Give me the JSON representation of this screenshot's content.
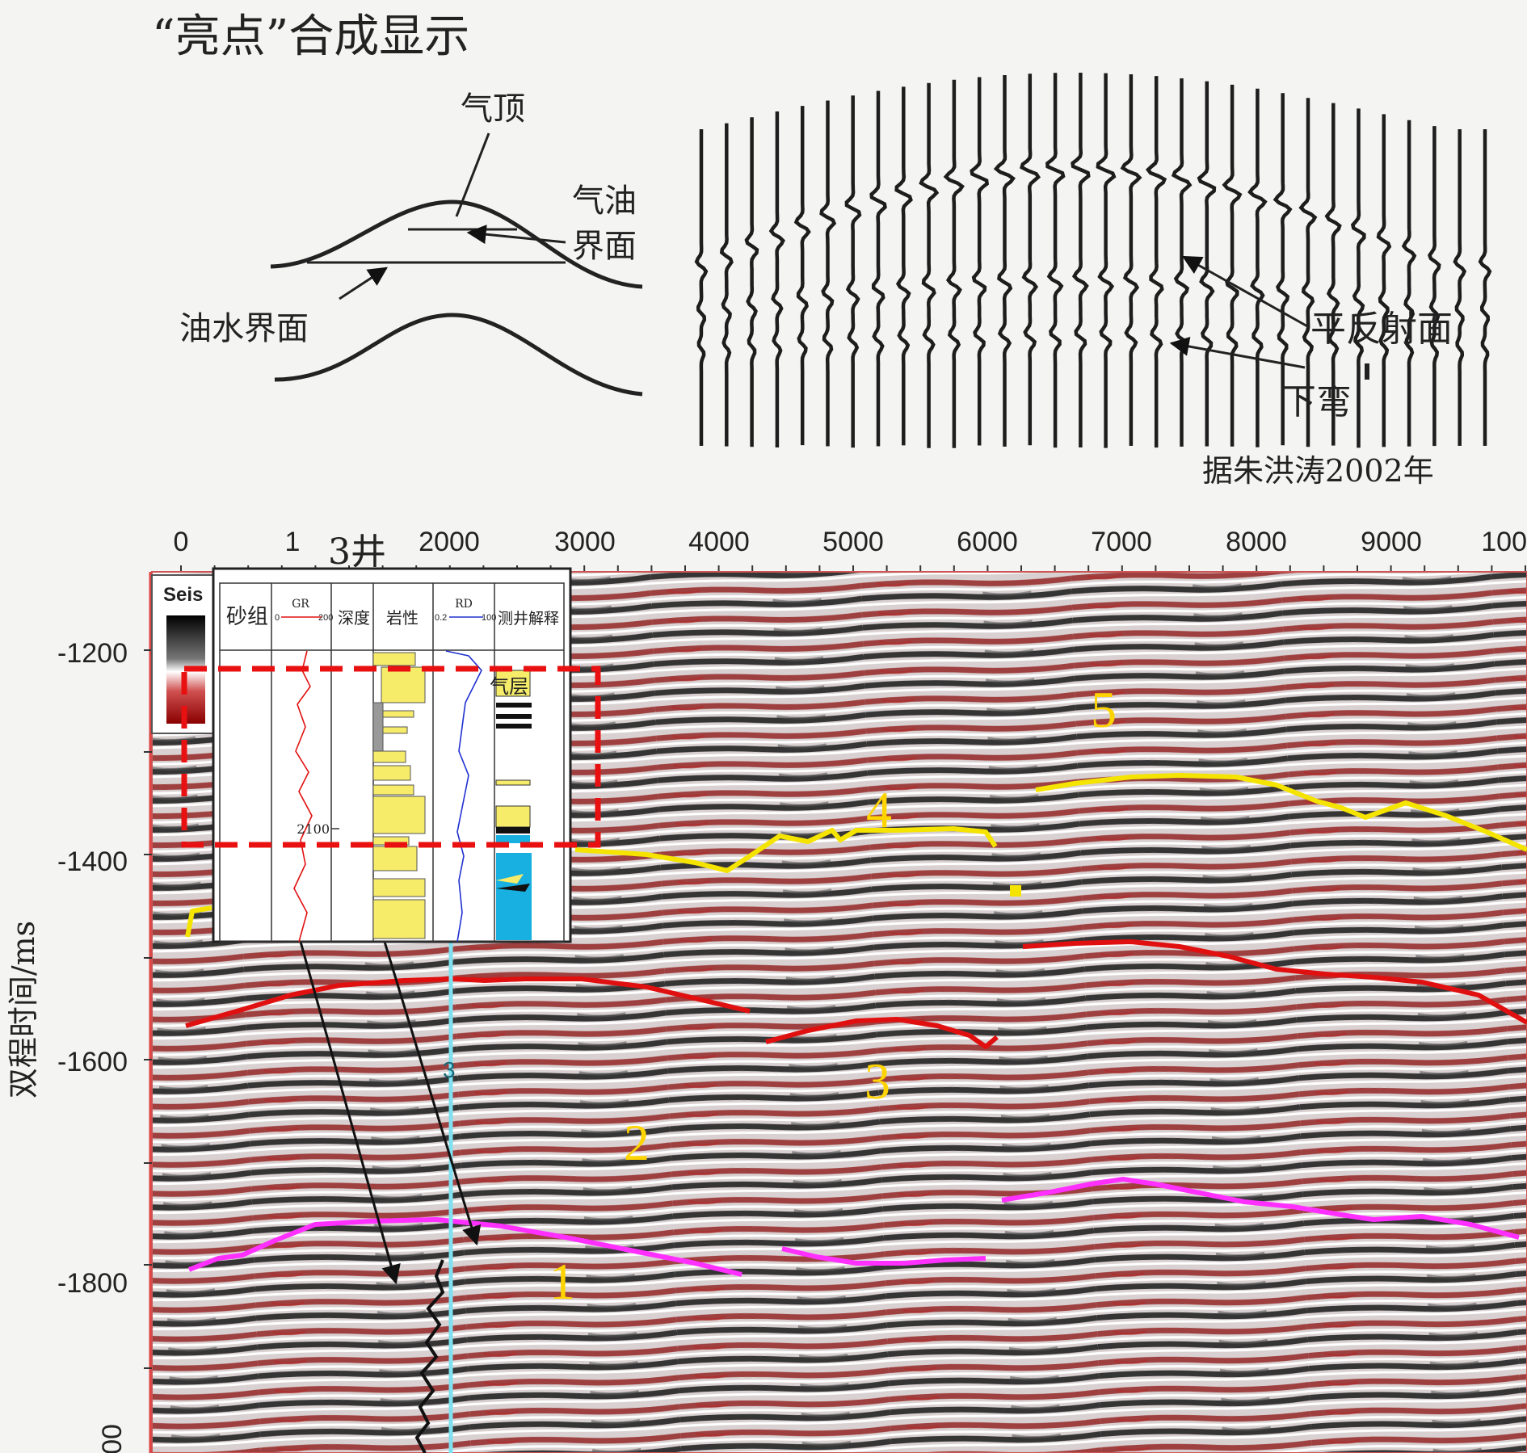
{
  "top": {
    "title": "“亮点”合成显示",
    "model_labels": {
      "gas_cap": "气顶",
      "gas_oil_contact_l1": "气油",
      "gas_oil_contact_l2": "界面",
      "oil_water_contact": "油水界面"
    },
    "trace_labels": {
      "flat_reflection": "平反射面",
      "sag": "下弯"
    },
    "source": "据朱洪涛2002年"
  },
  "section": {
    "x_ticks": [
      "0",
      "1",
      "2000",
      "3000",
      "4000",
      "5000",
      "6000",
      "7000",
      "8000",
      "9000",
      "100"
    ],
    "y_ticks": [
      "-1200",
      "-1400",
      "-1600",
      "-1800",
      "00"
    ],
    "y_axis_label": "双程时间/ms",
    "well_name": "3井",
    "well_marker": "3",
    "colorbar_label": "Seis",
    "horizon_numbers": [
      "1",
      "2",
      "3",
      "4",
      "5"
    ],
    "colors": {
      "yellow_horizon": "#f5e400",
      "red_horizon": "#e01010",
      "magenta_horizon": "#ff30ff",
      "well_line": "#7fe0f0",
      "dashed_box": "#e81010"
    }
  },
  "well_log": {
    "columns": [
      "砂组",
      "GR",
      "深度",
      "岩性",
      "RD",
      "测井解释"
    ],
    "gr_scale": [
      "0",
      "200"
    ],
    "rd_scale": [
      "0.2",
      "100"
    ],
    "depth_tick": "2100",
    "interpretation_label": "气层"
  }
}
